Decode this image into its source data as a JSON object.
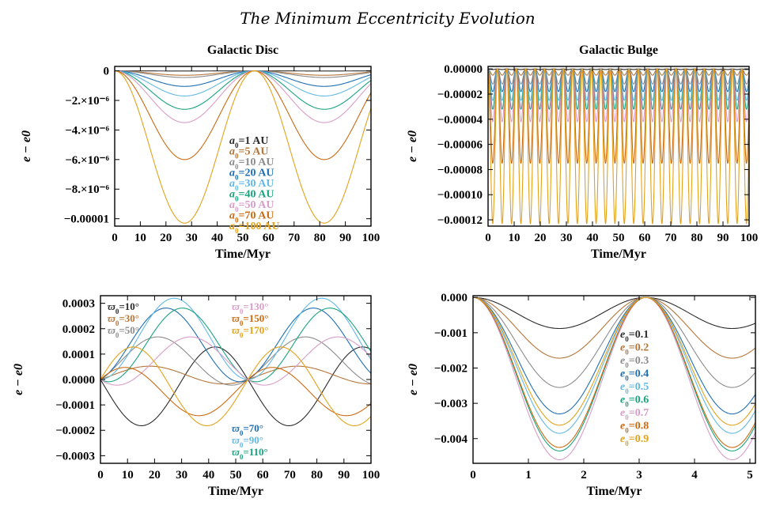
{
  "figure_title": "The Minimum Eccentricity Evolution",
  "colors": [
    "#2b2b2b",
    "#b5763a",
    "#8c8c8c",
    "#1f6fb4",
    "#62b8e6",
    "#1aa37f",
    "#d99cc8",
    "#cc6a12",
    "#e3a21b"
  ],
  "chart_data": [
    {
      "id": "disc",
      "type": "line",
      "title": "Galactic Disc",
      "xlabel": "Time/Myr",
      "ylabel": "e − e0",
      "xlim": [
        0,
        100
      ],
      "ylim": [
        -1.05e-05,
        3e-07
      ],
      "xticks": [
        "0",
        "10",
        "20",
        "30",
        "40",
        "50",
        "60",
        "70",
        "80",
        "90",
        "100"
      ],
      "yticks": [
        {
          "value": 0,
          "label": "0"
        },
        {
          "value": -2e-06,
          "label": "−2.×10⁻⁶"
        },
        {
          "value": -4e-06,
          "label": "−4.×10⁻⁶"
        },
        {
          "value": -6e-06,
          "label": "−6.×10⁻⁶"
        },
        {
          "value": -8e-06,
          "label": "−8.×10⁻⁶"
        },
        {
          "value": -1e-05,
          "label": "−0.00001"
        }
      ],
      "period_myr": 54.5,
      "series": [
        {
          "name": "a0=1 AU",
          "min_value": -1e-08
        },
        {
          "name": "a0=5 AU",
          "min_value": -3e-07
        },
        {
          "name": "a0=10 AU",
          "min_value": -4.5e-07
        },
        {
          "name": "a0=20 AU",
          "min_value": -1.05e-06
        },
        {
          "name": "a0=30 AU",
          "min_value": -1.7e-06
        },
        {
          "name": "a0=40 AU",
          "min_value": -2.6e-06
        },
        {
          "name": "a0=50 AU",
          "min_value": -3.5e-06
        },
        {
          "name": "a0=70 AU",
          "min_value": -6e-06
        },
        {
          "name": "a0=100 AU",
          "min_value": -1.03e-05
        }
      ],
      "legend_labels": [
        "a0=1 AU",
        "a0=5 AU",
        "a0=10 AU",
        "a0=20 AU",
        "a0=30 AU",
        "a0=40 AU",
        "a0=50 AU",
        "a0=70 AU",
        "a0=100 AU"
      ]
    },
    {
      "id": "bulge",
      "type": "line",
      "title": "Galactic Bulge",
      "xlabel": "Time/Myr",
      "ylabel": "e − e0",
      "xlim": [
        0,
        100
      ],
      "ylim": [
        -0.000125,
        2e-06
      ],
      "xticks": [
        "0",
        "10",
        "20",
        "30",
        "40",
        "50",
        "60",
        "70",
        "80",
        "90",
        "100"
      ],
      "yticks": [
        {
          "value": 0,
          "label": "0.00000"
        },
        {
          "value": -2e-05,
          "label": "−0.00002"
        },
        {
          "value": -4e-05,
          "label": "−0.00004"
        },
        {
          "value": -6e-05,
          "label": "−0.00006"
        },
        {
          "value": -8e-05,
          "label": "−0.00008"
        },
        {
          "value": -0.0001,
          "label": "−0.00010"
        },
        {
          "value": -0.00012,
          "label": "−0.00012"
        }
      ],
      "period_myr": 3.6,
      "series": [
        {
          "name": "a0=1 AU",
          "min_value": -5e-07
        },
        {
          "name": "a0=5 AU",
          "min_value": -5e-06
        },
        {
          "name": "a0=10 AU",
          "min_value": -1.2e-05
        },
        {
          "name": "a0=20 AU",
          "min_value": -1.8e-05
        },
        {
          "name": "a0=30 AU",
          "min_value": -2.5e-05
        },
        {
          "name": "a0=40 AU",
          "min_value": -3.2e-05
        },
        {
          "name": "a0=50 AU",
          "min_value": -4.2e-05
        },
        {
          "name": "a0=70 AU",
          "min_value": -7.5e-05
        },
        {
          "name": "a0=100 AU",
          "min_value": -0.000123
        }
      ]
    },
    {
      "id": "omega",
      "type": "line",
      "title": "",
      "xlabel": "Time/Myr",
      "ylabel": "e − e0",
      "xlim": [
        0,
        100
      ],
      "ylim": [
        -0.00033,
        0.00033
      ],
      "xticks": [
        "0",
        "10",
        "20",
        "30",
        "40",
        "50",
        "60",
        "70",
        "80",
        "90",
        "100"
      ],
      "yticks": [
        {
          "value": 0.0003,
          "label": "0.0003"
        },
        {
          "value": 0.0002,
          "label": "0.0002"
        },
        {
          "value": 0.0001,
          "label": "0.0001"
        },
        {
          "value": 0,
          "label": "0.0000"
        },
        {
          "value": -0.0001,
          "label": "−0.0001"
        },
        {
          "value": -0.0002,
          "label": "−0.0002"
        },
        {
          "value": -0.0003,
          "label": "−0.0003"
        }
      ],
      "period_myr": 54.5,
      "series": [
        {
          "name": "ϖ0=10°",
          "amplitude": -0.00031,
          "phase_deg": 10
        },
        {
          "name": "ϖ0=30°",
          "amplitude": 7e-05,
          "phase_deg": 30
        },
        {
          "name": "ϖ0=50°",
          "amplitude": 0.00019,
          "phase_deg": 50
        },
        {
          "name": "ϖ0=70°",
          "amplitude": 0.00029,
          "phase_deg": 70
        },
        {
          "name": "ϖ0=90°",
          "amplitude": 0.00032,
          "phase_deg": 90
        },
        {
          "name": "ϖ0=110°",
          "amplitude": 0.00029,
          "phase_deg": 110
        },
        {
          "name": "ϖ0=130°",
          "amplitude": 0.00019,
          "phase_deg": 130
        },
        {
          "name": "ϖ0=150°",
          "amplitude": -0.00019,
          "phase_deg": 150
        },
        {
          "name": "ϖ0=170°",
          "amplitude": -0.00031,
          "phase_deg": 170
        }
      ],
      "legend_groups": {
        "top_left": [
          "ϖ0=10°",
          "ϖ0=30°",
          "ϖ0=50°"
        ],
        "top_right": [
          "ϖ0=130°",
          "ϖ0=150°",
          "ϖ0=170°"
        ],
        "bottom": [
          "ϖ0=70°",
          "ϖ0=90°",
          "ϖ0=110°"
        ]
      }
    },
    {
      "id": "ecc",
      "type": "line",
      "title": "",
      "xlabel": "Time/Myr",
      "ylabel": "e − e0",
      "xlim": [
        0,
        5.1
      ],
      "ylim": [
        -0.0047,
        5e-05
      ],
      "xticks": [
        "0",
        "1",
        "2",
        "3",
        "4",
        "5"
      ],
      "yticks": [
        {
          "value": 0,
          "label": "0.000"
        },
        {
          "value": -0.001,
          "label": "−0.001"
        },
        {
          "value": -0.002,
          "label": "−0.002"
        },
        {
          "value": -0.003,
          "label": "−0.003"
        },
        {
          "value": -0.004,
          "label": "−0.004"
        }
      ],
      "period_myr": 3.12,
      "series": [
        {
          "name": "e0=0.1",
          "min_value": -0.00088
        },
        {
          "name": "e0=0.2",
          "min_value": -0.00172
        },
        {
          "name": "e0=0.3",
          "min_value": -0.00255
        },
        {
          "name": "e0=0.4",
          "min_value": -0.0033
        },
        {
          "name": "e0=0.5",
          "min_value": -0.00385
        },
        {
          "name": "e0=0.6",
          "min_value": -0.00435
        },
        {
          "name": "e0=0.7",
          "min_value": -0.0046
        },
        {
          "name": "e0=0.8",
          "min_value": -0.00425
        },
        {
          "name": "e0=0.9",
          "min_value": -0.00362
        }
      ],
      "legend_labels": [
        "e0=0.1",
        "e0=0.2",
        "e0=0.3",
        "e0=0.4",
        "e0=0.5",
        "e0=0.6",
        "e0=0.7",
        "e0=0.8",
        "e0=0.9"
      ]
    }
  ]
}
